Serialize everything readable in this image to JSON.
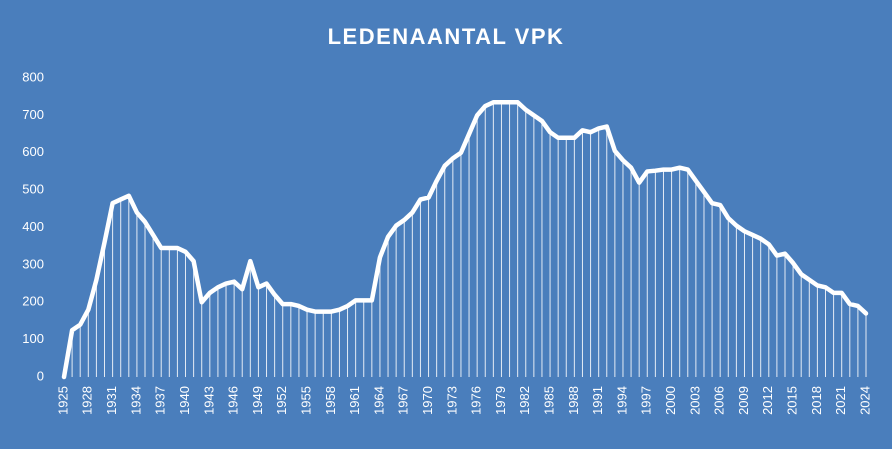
{
  "chart_data": {
    "type": "line",
    "title": "LEDENAANTAL VPK",
    "x": [
      1925,
      1926,
      1927,
      1928,
      1929,
      1930,
      1931,
      1932,
      1933,
      1934,
      1935,
      1936,
      1937,
      1938,
      1939,
      1940,
      1941,
      1942,
      1943,
      1944,
      1945,
      1946,
      1947,
      1948,
      1949,
      1950,
      1951,
      1952,
      1953,
      1954,
      1955,
      1956,
      1957,
      1958,
      1959,
      1960,
      1961,
      1962,
      1963,
      1964,
      1965,
      1966,
      1967,
      1968,
      1969,
      1970,
      1971,
      1972,
      1973,
      1974,
      1975,
      1976,
      1977,
      1978,
      1979,
      1980,
      1981,
      1982,
      1983,
      1984,
      1985,
      1986,
      1987,
      1988,
      1989,
      1990,
      1991,
      1992,
      1993,
      1994,
      1995,
      1996,
      1997,
      1998,
      1999,
      2000,
      2001,
      2002,
      2003,
      2004,
      2005,
      2006,
      2007,
      2008,
      2009,
      2010,
      2011,
      2012,
      2013,
      2014,
      2015,
      2016,
      2017,
      2018,
      2019,
      2020,
      2021,
      2022,
      2023,
      2024
    ],
    "values": [
      0,
      125,
      140,
      180,
      260,
      360,
      465,
      475,
      485,
      440,
      415,
      380,
      345,
      345,
      345,
      335,
      310,
      200,
      225,
      240,
      250,
      255,
      235,
      310,
      240,
      250,
      220,
      195,
      195,
      190,
      180,
      175,
      175,
      175,
      180,
      190,
      205,
      205,
      205,
      320,
      375,
      405,
      420,
      440,
      475,
      480,
      525,
      565,
      585,
      600,
      650,
      700,
      725,
      735,
      735,
      735,
      735,
      715,
      700,
      685,
      655,
      640,
      640,
      640,
      660,
      655,
      665,
      670,
      605,
      580,
      560,
      520,
      550,
      552,
      555,
      555,
      560,
      555,
      525,
      495,
      465,
      460,
      425,
      405,
      390,
      380,
      370,
      355,
      325,
      330,
      305,
      275,
      260,
      245,
      240,
      225,
      225,
      195,
      190,
      170
    ],
    "color": "#ffffff",
    "xlim": [
      1925,
      2024
    ],
    "xticks": [
      1925,
      1928,
      1931,
      1934,
      1937,
      1940,
      1943,
      1946,
      1949,
      1952,
      1955,
      1958,
      1961,
      1964,
      1967,
      1970,
      1973,
      1976,
      1979,
      1982,
      1985,
      1988,
      1991,
      1994,
      1997,
      2000,
      2003,
      2006,
      2009,
      2012,
      2015,
      2018,
      2021,
      2024
    ],
    "ylim": [
      0,
      800
    ],
    "yticks": [
      0,
      100,
      200,
      300,
      400,
      500,
      600,
      700,
      800
    ],
    "drop_lines": true
  }
}
